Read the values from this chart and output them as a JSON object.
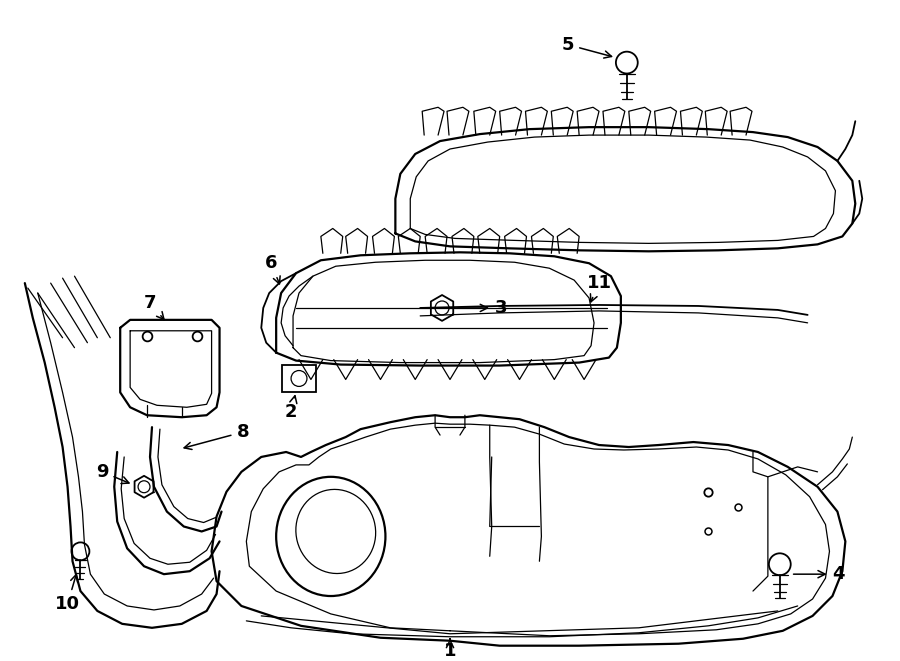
{
  "bg_color": "#ffffff",
  "line_color": "#000000",
  "lw_thin": 0.9,
  "lw_med": 1.3,
  "lw_thick": 1.6,
  "fig_width": 9.0,
  "fig_height": 6.61,
  "dpi": 100,
  "font_size": 13,
  "font_weight": "bold"
}
